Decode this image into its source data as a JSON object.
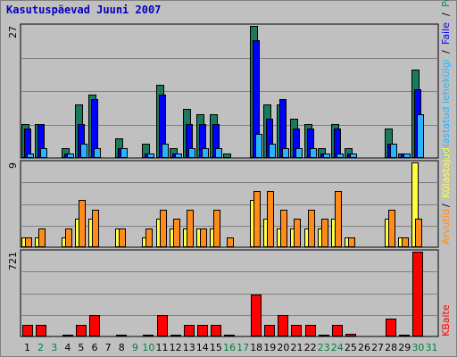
{
  "title": "Kasutuspäevad Juuni 2007",
  "chart_data": {
    "type": "bar",
    "categories": [
      "1",
      "2",
      "3",
      "4",
      "5",
      "6",
      "7",
      "8",
      "9",
      "10",
      "11",
      "12",
      "13",
      "14",
      "15",
      "16",
      "17",
      "18",
      "19",
      "20",
      "21",
      "22",
      "23",
      "24",
      "25",
      "26",
      "27",
      "28",
      "29",
      "30",
      "31"
    ],
    "weekend_days": [
      "2",
      "3",
      "9",
      "10",
      "16",
      "17",
      "23",
      "24",
      "30",
      "31"
    ],
    "colors": {
      "visits": "#1a7a5e",
      "pages": "#0000ff",
      "files": "#28b4ff",
      "hits": "#ffff40",
      "hits_alt": "#ff8c1a",
      "kbytes": "#ff0000",
      "weekday_label": "#000000",
      "weekend_label": "#008040"
    },
    "panels": [
      {
        "id": "visits_pages_files",
        "ymax_label": "27",
        "ylim": [
          0,
          27
        ],
        "series": [
          {
            "key": "visits",
            "values": [
              7,
              7,
              0,
              2,
              11,
              13,
              0,
              4,
              0,
              3,
              15,
              2,
              10,
              9,
              9,
              1,
              0,
              27,
              11,
              11,
              8,
              7,
              2,
              7,
              2,
              0,
              0,
              6,
              1,
              18,
              0
            ]
          },
          {
            "key": "pages",
            "values": [
              6,
              7,
              0,
              1,
              7,
              12,
              0,
              2,
              0,
              1,
              13,
              1,
              7,
              7,
              7,
              0,
              0,
              24,
              8,
              12,
              6,
              6,
              1,
              6,
              1,
              0,
              0,
              3,
              1,
              14,
              0
            ]
          },
          {
            "key": "files",
            "values": [
              1,
              2,
              0,
              1,
              3,
              2,
              0,
              2,
              0,
              1,
              3,
              1,
              2,
              2,
              2,
              0,
              0,
              5,
              3,
              2,
              2,
              2,
              1,
              1,
              1,
              0,
              0,
              3,
              1,
              9,
              0
            ]
          }
        ]
      },
      {
        "id": "hits",
        "ymax_label": "9",
        "ylim": [
          0,
          9
        ],
        "series": [
          {
            "key": "hits",
            "values": [
              1,
              1,
              0,
              1,
              3,
              3,
              0,
              2,
              0,
              1,
              3,
              2,
              2,
              2,
              2,
              0,
              0,
              5,
              3,
              2,
              2,
              2,
              2,
              3,
              1,
              0,
              0,
              3,
              1,
              9,
              0
            ]
          },
          {
            "key": "hits_alt",
            "values": [
              1,
              2,
              0,
              2,
              5,
              4,
              0,
              2,
              0,
              2,
              4,
              3,
              4,
              2,
              4,
              1,
              0,
              6,
              6,
              4,
              3,
              4,
              3,
              6,
              1,
              0,
              0,
              4,
              1,
              3,
              0
            ]
          }
        ]
      },
      {
        "id": "kbytes",
        "ymax_label": "721",
        "ylim": [
          0,
          721
        ],
        "series": [
          {
            "key": "kbytes",
            "values": [
              95,
              95,
              0,
              10,
              100,
              180,
              0,
              12,
              0,
              12,
              180,
              12,
              100,
              100,
              95,
              10,
              0,
              360,
              100,
              180,
              95,
              95,
              10,
              95,
              20,
              0,
              0,
              150,
              12,
              721,
              0
            ]
          }
        ]
      }
    ],
    "legend": [
      {
        "key": "visits",
        "label": "Pöördumisi",
        "color": "#1a7a5e"
      },
      {
        "key": "slash1",
        "label": "/",
        "color": "#000000"
      },
      {
        "key": "pages",
        "label": "Faile",
        "color": "#0000ff"
      },
      {
        "key": "slash2",
        "label": "/",
        "color": "#000000"
      },
      {
        "key": "files",
        "label": "Külastatud lehekülgi",
        "color": "#28b4ff"
      },
      {
        "key": "slash3",
        "label": "/",
        "color": "#000000"
      },
      {
        "key": "hits",
        "label": "Külastajad",
        "color": "#ffff40"
      },
      {
        "key": "slash4",
        "label": "/",
        "color": "#000000"
      },
      {
        "key": "hits_alt",
        "label": "Arvutid",
        "color": "#ff8c1a"
      },
      {
        "key": "kbytes",
        "label": "KBaite",
        "color": "#ff0000"
      }
    ]
  }
}
